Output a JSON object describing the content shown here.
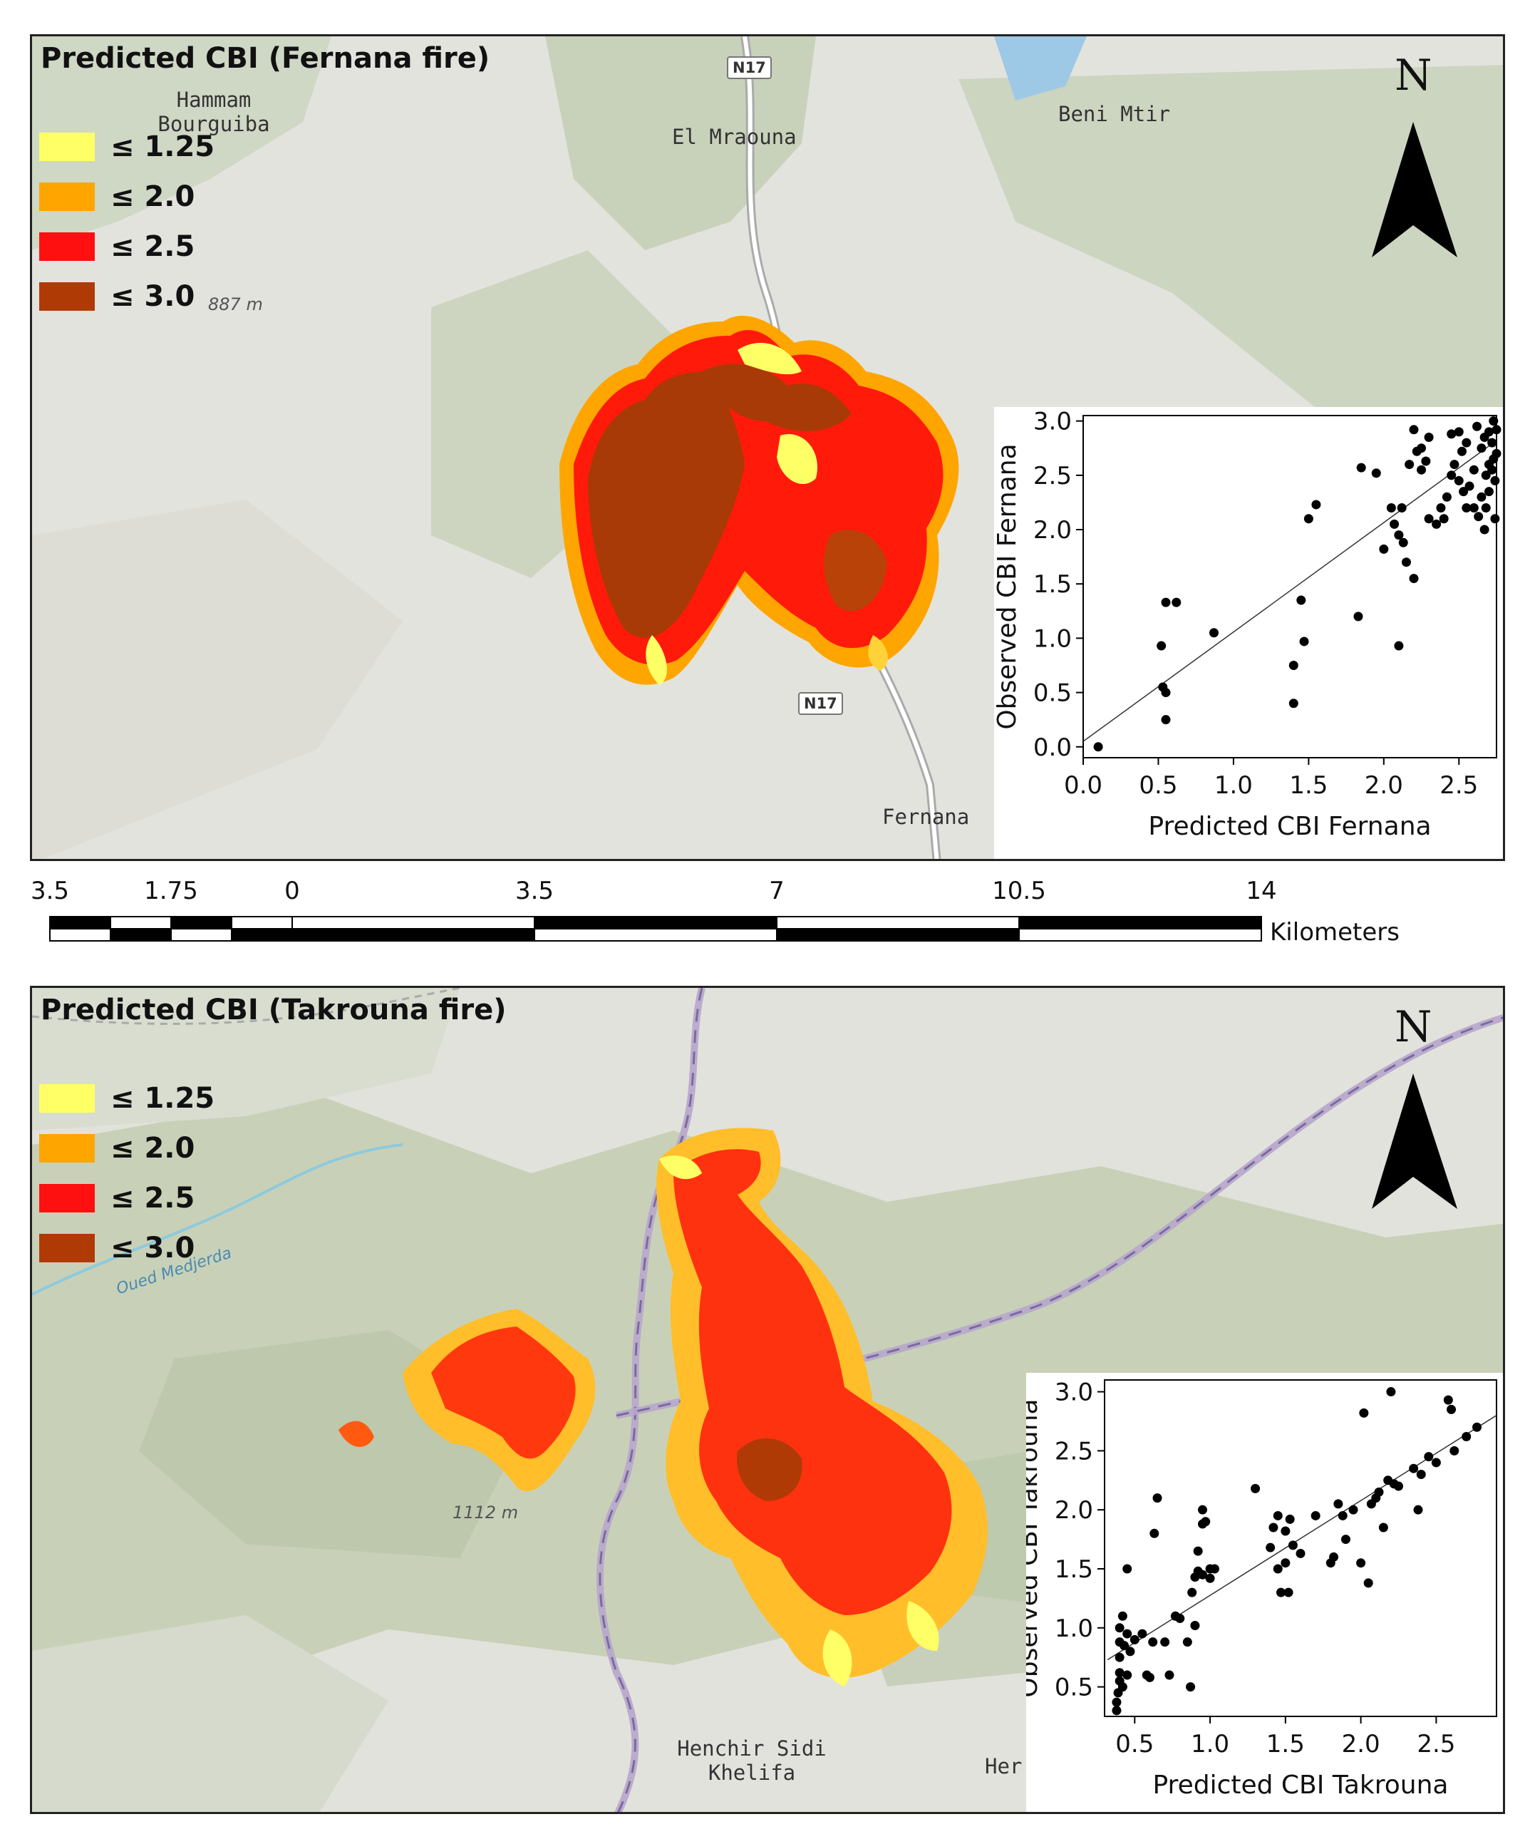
{
  "fernana": {
    "title": "Predicted CBI (Fernana fire)",
    "legend": [
      {
        "label": "≤ 1.25",
        "color": "#ffff66"
      },
      {
        "label": "≤ 2.0",
        "color": "#ffa500"
      },
      {
        "label": "≤ 2.5",
        "color": "#ff1010"
      },
      {
        "label": "≤ 3.0",
        "color": "#b03a05"
      }
    ],
    "places": [
      "Hammam Bourguiba",
      "El Mraouna",
      "Beni Mtir",
      "Fernana"
    ],
    "elevation": "887 m",
    "road_labels": [
      "N17",
      "N17"
    ],
    "north": "N",
    "inset": {
      "xlabel": "Predicted CBI Fernana",
      "ylabel": "Observed CBI Fernana",
      "xticks": [
        "0.0",
        "0.5",
        "1.0",
        "1.5",
        "2.0",
        "2.5"
      ],
      "yticks": [
        "0.0",
        "0.5",
        "1.0",
        "1.5",
        "2.0",
        "2.5",
        "3.0"
      ]
    }
  },
  "scale": {
    "ticks": [
      "3.5",
      "1.75",
      "0",
      "3.5",
      "7",
      "10.5",
      "14"
    ],
    "unit": "Kilometers"
  },
  "takrouna": {
    "title": "Predicted CBI (Takrouna fire)",
    "legend": [
      {
        "label": "≤ 1.25",
        "color": "#ffff66"
      },
      {
        "label": "≤ 2.0",
        "color": "#ffa500"
      },
      {
        "label": "≤ 2.5",
        "color": "#ff1010"
      },
      {
        "label": "≤ 3.0",
        "color": "#b03a05"
      }
    ],
    "places": [
      "Henchir Sidi Khelifa",
      "Her"
    ],
    "elevation": "1112 m",
    "river": "Oued Medjerda",
    "north": "N",
    "inset": {
      "xlabel": "Predicted CBI Takrouna",
      "ylabel": "Observed CBI Takrouna",
      "xticks": [
        "0.5",
        "1.0",
        "1.5",
        "2.0",
        "2.5"
      ],
      "yticks": [
        "0.5",
        "1.0",
        "1.5",
        "2.0",
        "2.5",
        "3.0"
      ]
    }
  },
  "chart_data": [
    {
      "type": "scatter",
      "xlabel": "Predicted CBI Fernana",
      "ylabel": "Observed CBI Fernana",
      "xlim": [
        0.0,
        2.75
      ],
      "ylim": [
        -0.1,
        3.05
      ],
      "grid": false,
      "points": [
        [
          0.1,
          0.0
        ],
        [
          0.52,
          0.93
        ],
        [
          0.53,
          0.55
        ],
        [
          0.55,
          0.5
        ],
        [
          0.55,
          1.33
        ],
        [
          0.55,
          0.25
        ],
        [
          0.62,
          1.33
        ],
        [
          0.87,
          1.05
        ],
        [
          1.4,
          0.75
        ],
        [
          1.4,
          0.4
        ],
        [
          1.45,
          1.35
        ],
        [
          1.47,
          0.97
        ],
        [
          1.5,
          2.1
        ],
        [
          1.55,
          2.23
        ],
        [
          1.83,
          1.2
        ],
        [
          1.85,
          2.57
        ],
        [
          1.95,
          2.52
        ],
        [
          2.0,
          1.82
        ],
        [
          2.05,
          2.2
        ],
        [
          2.07,
          2.05
        ],
        [
          2.1,
          1.95
        ],
        [
          2.1,
          0.93
        ],
        [
          2.12,
          2.2
        ],
        [
          2.13,
          1.88
        ],
        [
          2.15,
          1.7
        ],
        [
          2.17,
          2.6
        ],
        [
          2.2,
          1.55
        ],
        [
          2.2,
          2.92
        ],
        [
          2.22,
          2.72
        ],
        [
          2.25,
          2.75
        ],
        [
          2.25,
          2.55
        ],
        [
          2.28,
          2.63
        ],
        [
          2.3,
          2.85
        ],
        [
          2.3,
          2.1
        ],
        [
          2.35,
          2.05
        ],
        [
          2.38,
          2.2
        ],
        [
          2.4,
          2.1
        ],
        [
          2.42,
          2.3
        ],
        [
          2.45,
          2.88
        ],
        [
          2.45,
          2.5
        ],
        [
          2.47,
          2.6
        ],
        [
          2.5,
          2.9
        ],
        [
          2.5,
          2.45
        ],
        [
          2.52,
          2.72
        ],
        [
          2.53,
          2.35
        ],
        [
          2.55,
          2.2
        ],
        [
          2.55,
          2.8
        ],
        [
          2.57,
          2.4
        ],
        [
          2.6,
          2.2
        ],
        [
          2.6,
          2.55
        ],
        [
          2.62,
          2.95
        ],
        [
          2.63,
          2.12
        ],
        [
          2.65,
          2.3
        ],
        [
          2.65,
          2.75
        ],
        [
          2.67,
          2.85
        ],
        [
          2.67,
          2.0
        ],
        [
          2.68,
          2.5
        ],
        [
          2.68,
          2.2
        ],
        [
          2.7,
          2.9
        ],
        [
          2.7,
          2.6
        ],
        [
          2.7,
          2.35
        ],
        [
          2.72,
          2.8
        ],
        [
          2.72,
          2.55
        ],
        [
          2.73,
          3.0
        ],
        [
          2.73,
          2.65
        ],
        [
          2.74,
          2.45
        ],
        [
          2.74,
          2.1
        ],
        [
          2.75,
          2.92
        ],
        [
          2.75,
          2.7
        ]
      ],
      "fit_line": [
        [
          0.0,
          0.05
        ],
        [
          2.75,
          2.82
        ]
      ]
    },
    {
      "type": "scatter",
      "xlabel": "Predicted CBI Takrouna",
      "ylabel": "Observed CBI Takrouna",
      "xlim": [
        0.3,
        2.9
      ],
      "ylim": [
        0.25,
        3.1
      ],
      "grid": false,
      "points": [
        [
          0.38,
          0.3
        ],
        [
          0.38,
          0.37
        ],
        [
          0.39,
          0.45
        ],
        [
          0.4,
          0.55
        ],
        [
          0.4,
          0.62
        ],
        [
          0.4,
          0.75
        ],
        [
          0.4,
          0.88
        ],
        [
          0.4,
          1.0
        ],
        [
          0.42,
          1.1
        ],
        [
          0.42,
          0.5
        ],
        [
          0.43,
          0.85
        ],
        [
          0.45,
          0.95
        ],
        [
          0.45,
          0.6
        ],
        [
          0.47,
          0.8
        ],
        [
          0.5,
          0.9
        ],
        [
          0.55,
          0.95
        ],
        [
          0.58,
          0.6
        ],
        [
          0.6,
          0.58
        ],
        [
          0.62,
          0.88
        ],
        [
          0.7,
          0.88
        ],
        [
          0.73,
          0.6
        ],
        [
          0.77,
          1.1
        ],
        [
          0.8,
          1.08
        ],
        [
          0.85,
          0.88
        ],
        [
          0.87,
          0.5
        ],
        [
          0.88,
          1.3
        ],
        [
          0.9,
          1.02
        ],
        [
          0.9,
          1.43
        ],
        [
          0.92,
          1.48
        ],
        [
          0.92,
          1.65
        ],
        [
          0.95,
          1.45
        ],
        [
          0.95,
          1.88
        ],
        [
          0.95,
          2.0
        ],
        [
          0.97,
          1.9
        ],
        [
          1.0,
          1.5
        ],
        [
          1.0,
          1.42
        ],
        [
          1.03,
          1.5
        ],
        [
          0.65,
          2.1
        ],
        [
          0.63,
          1.8
        ],
        [
          0.45,
          1.5
        ],
        [
          1.3,
          2.18
        ],
        [
          1.4,
          1.68
        ],
        [
          1.42,
          1.85
        ],
        [
          1.45,
          1.5
        ],
        [
          1.45,
          1.95
        ],
        [
          1.47,
          1.3
        ],
        [
          1.5,
          1.55
        ],
        [
          1.5,
          1.82
        ],
        [
          1.52,
          1.3
        ],
        [
          1.53,
          1.92
        ],
        [
          1.55,
          1.7
        ],
        [
          1.6,
          1.63
        ],
        [
          1.7,
          1.95
        ],
        [
          1.8,
          1.55
        ],
        [
          1.82,
          1.6
        ],
        [
          1.85,
          2.05
        ],
        [
          1.88,
          1.95
        ],
        [
          1.9,
          1.75
        ],
        [
          1.95,
          2.0
        ],
        [
          2.0,
          1.55
        ],
        [
          2.02,
          2.82
        ],
        [
          2.05,
          1.38
        ],
        [
          2.07,
          2.05
        ],
        [
          2.1,
          2.1
        ],
        [
          2.12,
          2.15
        ],
        [
          2.15,
          1.85
        ],
        [
          2.18,
          2.25
        ],
        [
          2.2,
          3.0
        ],
        [
          2.22,
          2.22
        ],
        [
          2.25,
          2.2
        ],
        [
          2.35,
          2.35
        ],
        [
          2.38,
          2.0
        ],
        [
          2.4,
          2.3
        ],
        [
          2.45,
          2.45
        ],
        [
          2.5,
          2.4
        ],
        [
          2.58,
          2.93
        ],
        [
          2.6,
          2.85
        ],
        [
          2.62,
          2.5
        ],
        [
          2.7,
          2.62
        ],
        [
          2.77,
          2.7
        ]
      ],
      "fit_line": [
        [
          0.32,
          0.73
        ],
        [
          2.9,
          2.8
        ]
      ]
    }
  ]
}
